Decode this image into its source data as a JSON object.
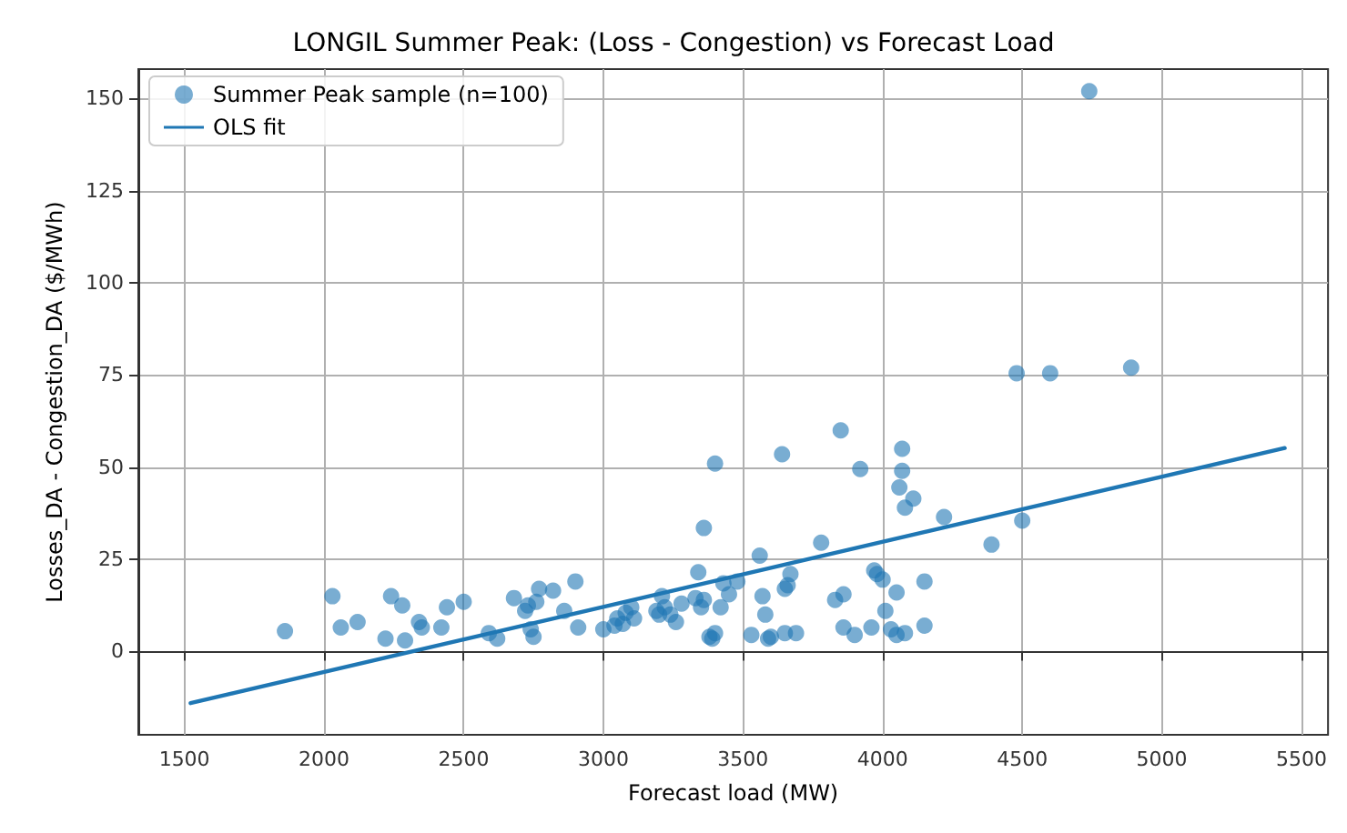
{
  "chart_data": {
    "type": "scatter",
    "title": "LONGIL Summer Peak: (Loss - Congestion) vs Forecast Load",
    "xlabel": "Forecast load (MW)",
    "ylabel": "Losses_DA - Congestion_DA ($/MWh)",
    "xlim": [
      1335,
      5595
    ],
    "ylim": [
      -22.6,
      158
    ],
    "xticks": [
      1500,
      2000,
      2500,
      3000,
      3500,
      4000,
      4500,
      5000,
      5500
    ],
    "yticks": [
      0,
      25,
      50,
      75,
      100,
      125,
      150
    ],
    "grid": true,
    "legend": "top left",
    "marker": "circle",
    "series": [
      {
        "name": "Summer Peak sample (n=100)",
        "color": "#1f77b4",
        "x": [
          1860,
          2030,
          2060,
          2120,
          2220,
          2240,
          2280,
          2290,
          2340,
          2350,
          2420,
          2440,
          2500,
          2590,
          2620,
          2680,
          2720,
          2730,
          2740,
          2750,
          2760,
          2770,
          2820,
          2860,
          2900,
          2910,
          3000,
          3040,
          3050,
          3070,
          3080,
          3100,
          3110,
          3190,
          3200,
          3210,
          3220,
          3240,
          3260,
          3280,
          3330,
          3340,
          3350,
          3360,
          3360,
          3380,
          3390,
          3400,
          3400,
          3420,
          3430,
          3450,
          3480,
          3530,
          3560,
          3570,
          3580,
          3590,
          3600,
          3640,
          3650,
          3650,
          3660,
          3670,
          3690,
          3780,
          3830,
          3850,
          3860,
          3860,
          3900,
          3920,
          3960,
          3970,
          3980,
          4000,
          4010,
          4030,
          4050,
          4050,
          4060,
          4070,
          4070,
          4080,
          4080,
          4110,
          4150,
          4150,
          4220,
          4390,
          4480,
          4500,
          4600,
          4740,
          4890
        ],
        "values": [
          5.5,
          15,
          6.5,
          8,
          3.5,
          15,
          12.5,
          3,
          8,
          6.5,
          6.5,
          12,
          13.5,
          5,
          3.5,
          14.5,
          11,
          12.5,
          6,
          4,
          13.5,
          17,
          16.5,
          11,
          19,
          6.5,
          6,
          7,
          9,
          7.5,
          10.5,
          12,
          9,
          11,
          10,
          15,
          12,
          10,
          8,
          13,
          14.5,
          21.5,
          12,
          14,
          33.5,
          4,
          3.5,
          51,
          5,
          12,
          18.5,
          15.5,
          19,
          4.5,
          26,
          15,
          10,
          3.5,
          4,
          53.5,
          17,
          5,
          18,
          21,
          5,
          29.5,
          14,
          60,
          15.5,
          6.5,
          4.5,
          49.5,
          6.5,
          22,
          21,
          19.5,
          11,
          6,
          16,
          4.5,
          44.5,
          49,
          55,
          5,
          39,
          41.5,
          19,
          7,
          36.5,
          29,
          75.5,
          35.5,
          75.5,
          152,
          77
        ]
      },
      {
        "name": "OLS fit",
        "type": "line",
        "color": "#1f77b4",
        "marker": "none",
        "line_style": "solid",
        "x": [
          1522,
          5440
        ],
        "values": [
          -14,
          55.2
        ]
      }
    ]
  }
}
